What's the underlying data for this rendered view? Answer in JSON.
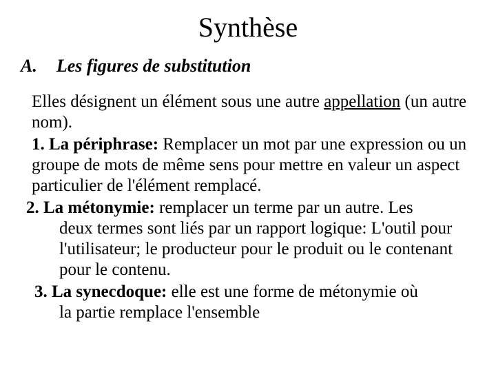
{
  "title": "Synthèse",
  "section": {
    "letter": "A.",
    "heading": "Les figures de substitution"
  },
  "intro": {
    "part1": "Elles désignent un élément sous une autre ",
    "underlined": "appellation",
    "part2": " (un autre nom)."
  },
  "items": {
    "one": {
      "label": "1. La périphrase:",
      "text": " Remplacer un mot par une expression ou un groupe de mots de même sens pour mettre en valeur un aspect particulier de l'élément remplacé."
    },
    "two": {
      "label": "2. La métonymie:",
      "text_first": " remplacer un terme par un autre. Les",
      "text_cont": "deux termes sont liés par un rapport logique: L'outil pour l'utilisateur; le producteur pour le produit ou le contenant pour le contenu."
    },
    "three": {
      "label": "3. La synecdoque:",
      "text_first": " elle est une forme de métonymie où",
      "text_cont": "la partie remplace l'ensemble"
    }
  },
  "colors": {
    "background": "#ffffff",
    "text": "#000000"
  },
  "typography": {
    "title_fontsize": 40,
    "heading_fontsize": 26,
    "body_fontsize": 25,
    "font_family": "Times New Roman"
  }
}
